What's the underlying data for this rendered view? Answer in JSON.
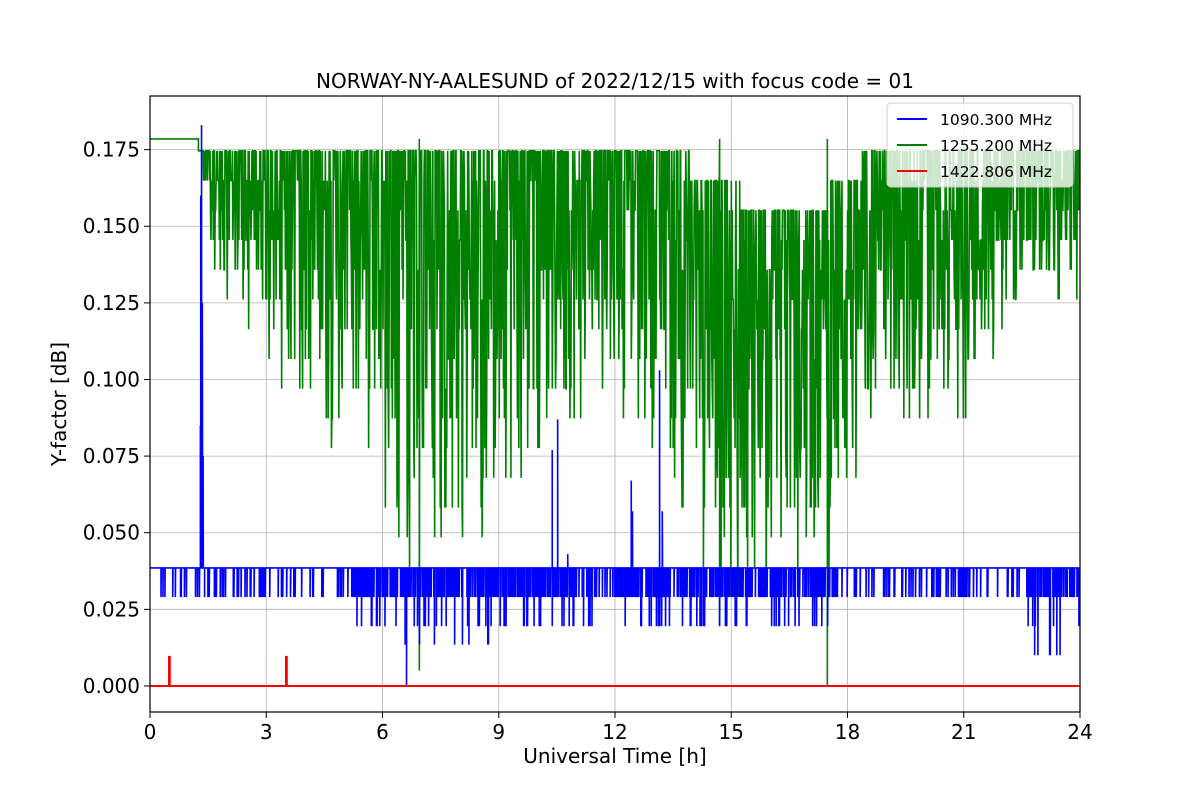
{
  "chart_data": {
    "type": "line",
    "title": "NORWAY-NY-AALESUND of 2022/12/15 with focus code = 01",
    "xlabel": "Universal Time [h]",
    "ylabel": "Y-factor [dB]",
    "xlim": [
      0,
      24
    ],
    "ylim": [
      -0.0085,
      0.1925
    ],
    "xticks": [
      0,
      3,
      6,
      9,
      12,
      15,
      18,
      21,
      24
    ],
    "xtick_labels": [
      "0",
      "3",
      "6",
      "9",
      "12",
      "15",
      "18",
      "21",
      "24"
    ],
    "yticks": [
      0.0,
      0.025,
      0.05,
      0.075,
      0.1,
      0.125,
      0.15,
      0.175
    ],
    "ytick_labels": [
      "0.000",
      "0.025",
      "0.050",
      "0.075",
      "0.100",
      "0.125",
      "0.150",
      "0.175"
    ],
    "grid": true,
    "legend_position": "top-right",
    "series": [
      {
        "name": "1090.300 MHz",
        "color": "#0000ff",
        "baseline": 0.0385,
        "low_levels": [
          0.029,
          0.0195,
          0.0095
        ],
        "spikes": [
          {
            "x": 1.28,
            "y": 0.0385
          },
          {
            "x": 1.3,
            "y": 0.085
          },
          {
            "x": 1.31,
            "y": 0.16
          },
          {
            "x": 1.33,
            "y": 0.183
          },
          {
            "x": 1.35,
            "y": 0.125
          },
          {
            "x": 1.37,
            "y": 0.075
          },
          {
            "x": 1.4,
            "y": 0.0385
          },
          {
            "x": 6.62,
            "y": 0.0
          },
          {
            "x": 10.38,
            "y": 0.077
          },
          {
            "x": 10.52,
            "y": 0.087
          },
          {
            "x": 10.78,
            "y": 0.043
          },
          {
            "x": 12.42,
            "y": 0.067
          },
          {
            "x": 12.45,
            "y": 0.057
          },
          {
            "x": 13.15,
            "y": 0.103
          },
          {
            "x": 13.22,
            "y": 0.057
          }
        ]
      },
      {
        "name": "1255.200 MHz",
        "color": "#008000",
        "flat_level": 0.1785,
        "flat_until": 1.25,
        "envelope": [
          {
            "x": 1.25,
            "low": 0.178,
            "high": 0.1785
          },
          {
            "x": 1.6,
            "low": 0.14,
            "high": 0.1785
          },
          {
            "x": 3.0,
            "low": 0.1,
            "high": 0.1785
          },
          {
            "x": 5.0,
            "low": 0.075,
            "high": 0.1785
          },
          {
            "x": 7.0,
            "low": 0.03,
            "high": 0.1785
          },
          {
            "x": 9.0,
            "low": 0.055,
            "high": 0.1785
          },
          {
            "x": 11.0,
            "low": 0.085,
            "high": 0.1785
          },
          {
            "x": 13.0,
            "low": 0.08,
            "high": 0.1785
          },
          {
            "x": 14.5,
            "low": 0.025,
            "high": 0.165
          },
          {
            "x": 16.0,
            "low": 0.03,
            "high": 0.155
          },
          {
            "x": 17.5,
            "low": 0.04,
            "high": 0.16
          },
          {
            "x": 19.0,
            "low": 0.085,
            "high": 0.1785
          },
          {
            "x": 21.0,
            "low": 0.085,
            "high": 0.1785
          },
          {
            "x": 22.5,
            "low": 0.13,
            "high": 0.1785
          },
          {
            "x": 24.0,
            "low": 0.12,
            "high": 0.1785
          }
        ],
        "dips": [
          {
            "x": 6.95,
            "y": 0.005
          },
          {
            "x": 17.48,
            "y": 0.0
          },
          {
            "x": 14.7,
            "y": 0.02
          }
        ]
      },
      {
        "name": "1422.806 MHz",
        "color": "#ff0000",
        "baseline": 0.0,
        "spikes": [
          {
            "x": 0.5,
            "y": 0.0095
          },
          {
            "x": 3.52,
            "y": 0.0095
          }
        ]
      }
    ]
  }
}
